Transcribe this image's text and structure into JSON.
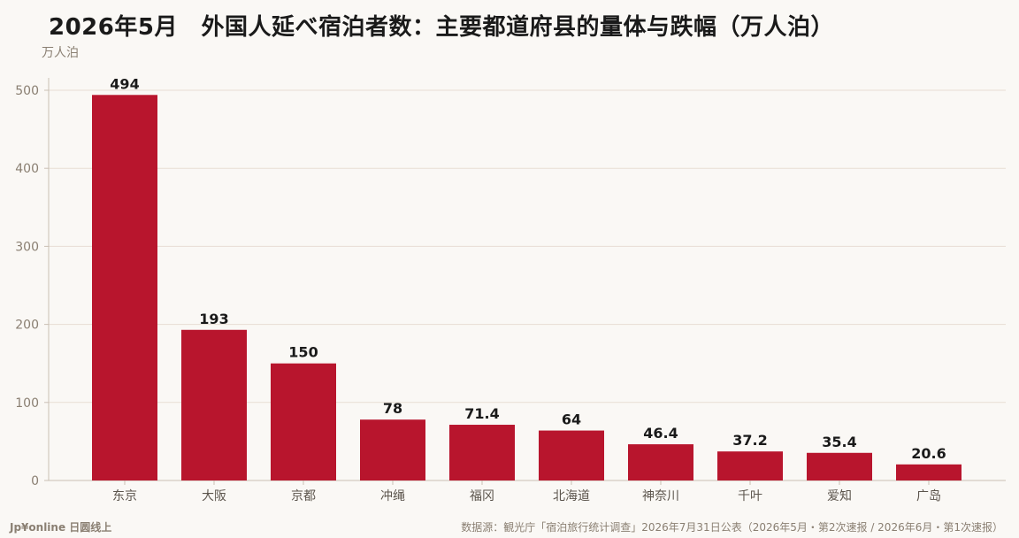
{
  "title": "2026年5月　外国人延べ宿泊者数：主要都道府县的量体与跌幅（万人泊）",
  "unit_label": "万人泊",
  "footer": {
    "brand": "Jp¥online 日圆线上",
    "source": "数据源：観光庁「宿泊旅行统计调查」2026年7月31日公表（2026年5月・第2次速报 / 2026年6月・第1次速报）"
  },
  "colors": {
    "bar": "#b8152d",
    "grid": "#e8ddd3",
    "axis": "#c9bfb4",
    "background": "#faf8f5"
  },
  "chart_data": {
    "type": "bar",
    "title": "2026年5月　外国人延べ宿泊者数：主要都道府县的量体与跌幅（万人泊）",
    "ylabel": "万人泊",
    "xlabel": "",
    "categories": [
      "东京",
      "大阪",
      "京都",
      "冲绳",
      "福冈",
      "北海道",
      "神奈川",
      "千叶",
      "爱知",
      "广岛"
    ],
    "values": [
      494,
      193,
      150,
      78,
      71.4,
      64,
      46.4,
      37.2,
      35.4,
      20.6
    ],
    "value_labels": [
      "494",
      "193",
      "150",
      "78",
      "71.4",
      "64",
      "46.4",
      "37.2",
      "35.4",
      "20.6"
    ],
    "yticks": [
      0,
      100,
      200,
      300,
      400,
      500
    ],
    "ylim": [
      0,
      520
    ],
    "grid": true,
    "legend": "none"
  }
}
